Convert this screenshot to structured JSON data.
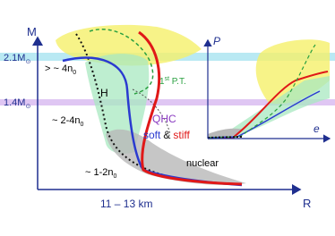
{
  "main_axis": {
    "y_label": "M",
    "x_label": "R",
    "x_range": "11 – 13 km"
  },
  "mass_lines": [
    {
      "text": "2.1M",
      "sub": "⊙"
    },
    {
      "text": "1.4M",
      "sub": "⊙"
    }
  ],
  "density_labels": [
    {
      "text": "> ~ 4n",
      "sub": "0"
    },
    {
      "text": "~ 2-4n",
      "sub": "0"
    },
    {
      "text": "~ 1-2n",
      "sub": "0"
    }
  ],
  "region_labels": {
    "hadronic": "H",
    "transition": "1",
    "transition_sup": "st",
    "transition_rest": " P.T.",
    "qhc": "QHC",
    "nuclear": "nuclear"
  },
  "eos_legend": {
    "soft": "soft",
    "and": "&",
    "stiff": "stiff"
  },
  "inset": {
    "y_label": "P",
    "x_label": "e"
  }
}
